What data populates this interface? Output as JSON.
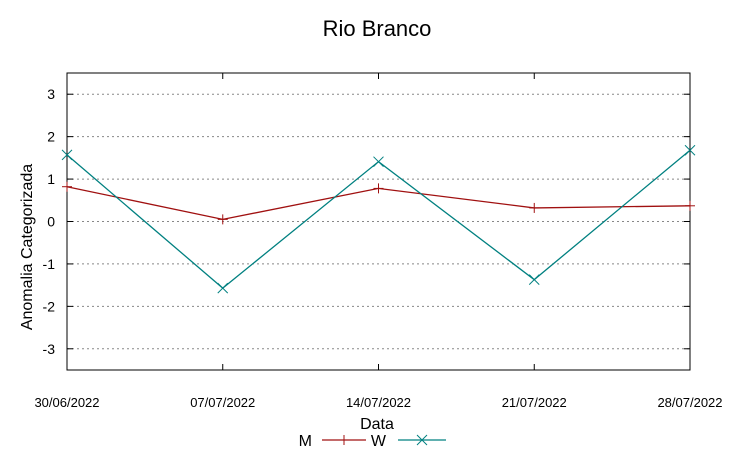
{
  "chart_data": {
    "type": "line",
    "title": "Rio Branco",
    "xlabel": "Data",
    "ylabel": "Anomalia Categorizada",
    "x": [
      "30/06/2022",
      "07/07/2022",
      "14/07/2022",
      "21/07/2022",
      "28/07/2022"
    ],
    "x_ticks": [
      "30/06/2022",
      "07/07/2022",
      "14/07/2022",
      "21/07/2022",
      "28/07/2022"
    ],
    "y_ticks": [
      "3",
      "2",
      "1",
      "0",
      "-1",
      "-2",
      "-3"
    ],
    "ylim": [
      -3.5,
      3.5
    ],
    "grid": true,
    "legend_position": "bottom-center",
    "series": [
      {
        "name": "M",
        "color": "#a01010",
        "marker": "plus",
        "values": [
          0.82,
          0.05,
          0.78,
          0.32,
          0.37
        ]
      },
      {
        "name": "W",
        "color": "#008080",
        "marker": "cross",
        "values": [
          1.57,
          -1.57,
          1.41,
          -1.37,
          1.68
        ]
      }
    ]
  }
}
